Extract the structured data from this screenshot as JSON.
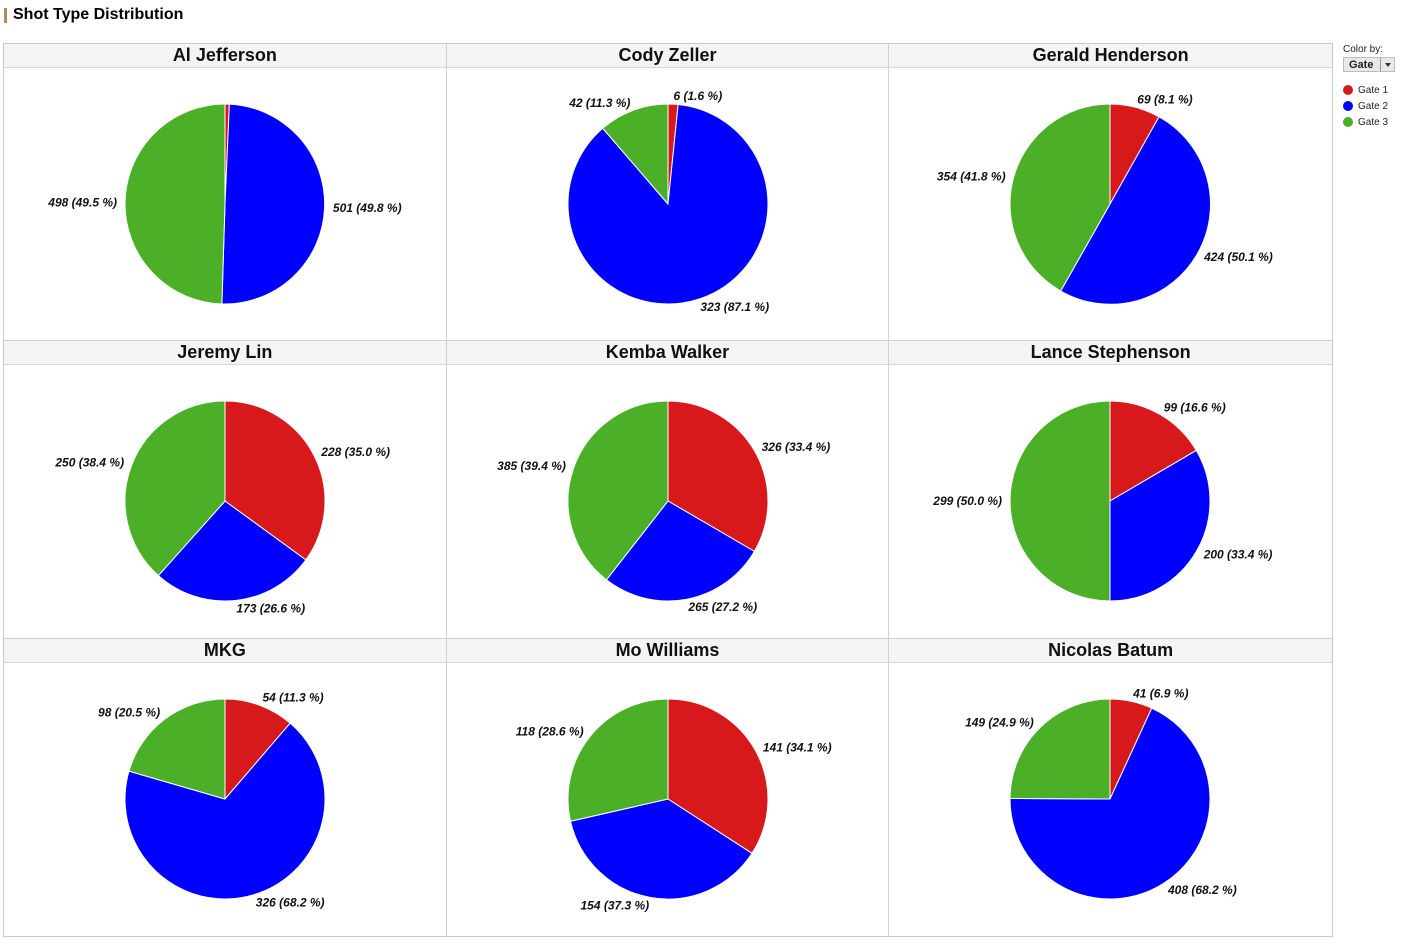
{
  "page": {
    "title": "Shot Type Distribution"
  },
  "legend": {
    "color_by_label": "Color by:",
    "color_by_value": "Gate",
    "items": [
      {
        "label": "Gate 1",
        "color": "#d7191c"
      },
      {
        "label": "Gate 2",
        "color": "#0000ff"
      },
      {
        "label": "Gate 3",
        "color": "#4caf28"
      }
    ]
  },
  "chart_data": [
    {
      "type": "pie",
      "title": "Al Jefferson",
      "categories": [
        "Gate 1",
        "Gate 2",
        "Gate 3"
      ],
      "values": [
        7,
        501,
        498
      ],
      "labels": [
        "",
        "501 (49.8 %)",
        "498 (49.5 %)"
      ]
    },
    {
      "type": "pie",
      "title": "Cody Zeller",
      "categories": [
        "Gate 1",
        "Gate 2",
        "Gate 3"
      ],
      "values": [
        6,
        323,
        42
      ],
      "labels": [
        "6 (1.6 %)",
        "323 (87.1 %)",
        "42 (11.3 %)"
      ]
    },
    {
      "type": "pie",
      "title": "Gerald Henderson",
      "categories": [
        "Gate 1",
        "Gate 2",
        "Gate 3"
      ],
      "values": [
        69,
        424,
        354
      ],
      "labels": [
        "69 (8.1 %)",
        "424 (50.1 %)",
        "354 (41.8 %)"
      ]
    },
    {
      "type": "pie",
      "title": "Jeremy Lin",
      "categories": [
        "Gate 1",
        "Gate 2",
        "Gate 3"
      ],
      "values": [
        228,
        173,
        250
      ],
      "labels": [
        "228 (35.0 %)",
        "173 (26.6 %)",
        "250 (38.4 %)"
      ]
    },
    {
      "type": "pie",
      "title": "Kemba Walker",
      "categories": [
        "Gate 1",
        "Gate 2",
        "Gate 3"
      ],
      "values": [
        326,
        265,
        385
      ],
      "labels": [
        "326 (33.4 %)",
        "265 (27.2 %)",
        "385 (39.4 %)"
      ]
    },
    {
      "type": "pie",
      "title": "Lance Stephenson",
      "categories": [
        "Gate 1",
        "Gate 2",
        "Gate 3"
      ],
      "values": [
        99,
        200,
        299
      ],
      "labels": [
        "99 (16.6 %)",
        "200 (33.4 %)",
        "299 (50.0 %)"
      ]
    },
    {
      "type": "pie",
      "title": "MKG",
      "categories": [
        "Gate 1",
        "Gate 2",
        "Gate 3"
      ],
      "values": [
        54,
        326,
        98
      ],
      "labels": [
        "54 (11.3 %)",
        "326 (68.2 %)",
        "98 (20.5 %)"
      ]
    },
    {
      "type": "pie",
      "title": "Mo Williams",
      "categories": [
        "Gate 1",
        "Gate 2",
        "Gate 3"
      ],
      "values": [
        141,
        154,
        118
      ],
      "labels": [
        "141 (34.1 %)",
        "154 (37.3 %)",
        "118 (28.6 %)"
      ]
    },
    {
      "type": "pie",
      "title": "Nicolas Batum",
      "categories": [
        "Gate 1",
        "Gate 2",
        "Gate 3"
      ],
      "values": [
        41,
        408,
        149
      ],
      "labels": [
        "41 (6.9 %)",
        "408 (68.2 %)",
        "149 (24.9 %)"
      ]
    }
  ]
}
